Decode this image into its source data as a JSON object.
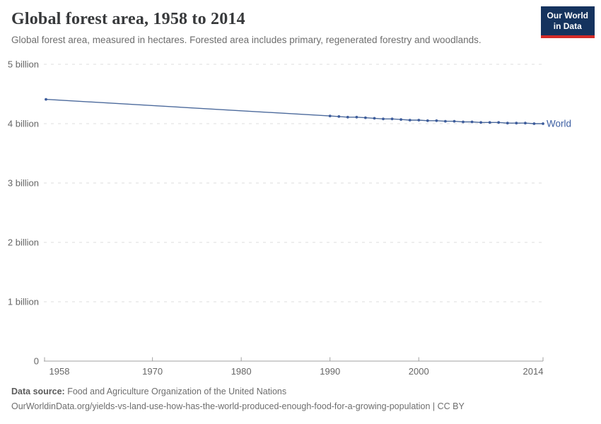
{
  "header": {
    "title": "Global forest area, 1958 to 2014",
    "subtitle": "Global forest area, measured in hectares. Forested area includes primary, regenerated forestry and woodlands.",
    "logo": {
      "line1": "Our World",
      "line2": "in Data",
      "bg_color": "#15335E",
      "bar_color": "#D42B28"
    }
  },
  "chart_data": {
    "type": "line",
    "title": "Global forest area, 1958 to 2014",
    "xlabel": "",
    "ylabel": "",
    "unit": "hectares (billions)",
    "xlim": [
      1958,
      2014
    ],
    "ylim": [
      0,
      5
    ],
    "grid": "horizontal-dashed",
    "legend_position": "end-of-line",
    "x_ticks": [
      {
        "value": 1958,
        "label": "1958"
      },
      {
        "value": 1970,
        "label": "1970"
      },
      {
        "value": 1980,
        "label": "1980"
      },
      {
        "value": 1990,
        "label": "1990"
      },
      {
        "value": 2000,
        "label": "2000"
      },
      {
        "value": 2014,
        "label": "2014"
      }
    ],
    "y_ticks": [
      {
        "value": 0,
        "label": "0"
      },
      {
        "value": 1,
        "label": "1 billion"
      },
      {
        "value": 2,
        "label": "2 billion"
      },
      {
        "value": 3,
        "label": "3 billion"
      },
      {
        "value": 4,
        "label": "4 billion"
      },
      {
        "value": 5,
        "label": "5 billion"
      }
    ],
    "series": [
      {
        "name": "World",
        "color": "#4C6A9C",
        "marker_color": "#3D5C9B",
        "label_color": "#3C5EA2",
        "x": [
          1958,
          1990,
          1991,
          1992,
          1993,
          1994,
          1995,
          1996,
          1997,
          1998,
          1999,
          2000,
          2001,
          2002,
          2003,
          2004,
          2005,
          2006,
          2007,
          2008,
          2009,
          2010,
          2011,
          2012,
          2013,
          2014
        ],
        "y": [
          4.41,
          4.13,
          4.12,
          4.11,
          4.11,
          4.1,
          4.09,
          4.08,
          4.08,
          4.07,
          4.06,
          4.06,
          4.05,
          4.05,
          4.04,
          4.04,
          4.03,
          4.03,
          4.02,
          4.02,
          4.02,
          4.01,
          4.01,
          4.01,
          4.0,
          4.0
        ]
      }
    ],
    "colors": {
      "grid": "#DCDCDC",
      "axis": "#A1A1A1",
      "tick_text": "#666666"
    }
  },
  "footer": {
    "data_source_label": "Data source:",
    "data_source_value": " Food and Agriculture Organization of the United Nations",
    "link": "OurWorldinData.org/yields-vs-land-use-how-has-the-world-produced-enough-food-for-a-growing-population",
    "license": " | CC BY"
  }
}
